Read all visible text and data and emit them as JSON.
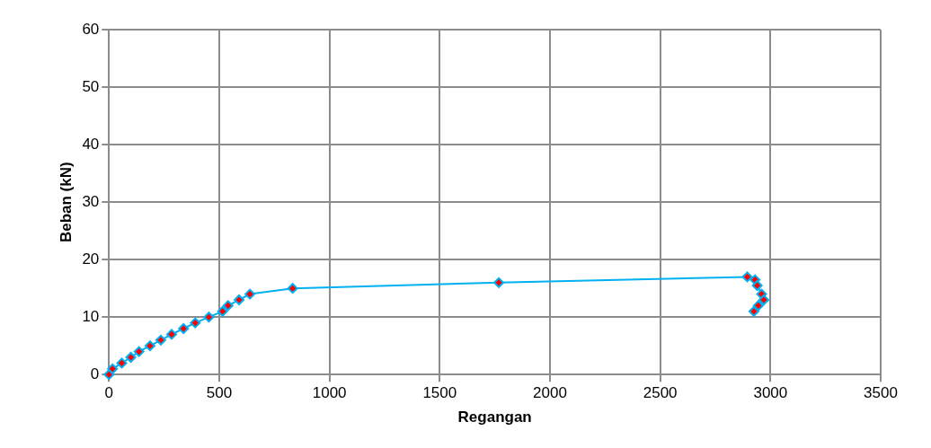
{
  "chart_data": {
    "type": "line",
    "xlabel": "Regangan",
    "ylabel": "Beban (kN)",
    "x": [
      0,
      16,
      58,
      99,
      136,
      186,
      235,
      284,
      338,
      391,
      453,
      515,
      540,
      590,
      639,
      833,
      1768,
      2895,
      2930,
      2940,
      2960,
      2970,
      2945,
      2925
    ],
    "series": [
      {
        "color": "#00b0f0",
        "colors": [
          "#ff0000",
          "#ff0000",
          "#ff0000",
          "#ff0000",
          "#ff0000",
          "#ff0000",
          "#ff0000",
          "#ff0000",
          "#ff0000",
          "#ff0000",
          "#ff0000",
          "#ff0000",
          "#ff0000",
          "#ff0000",
          "#ff0000",
          "#ff0000",
          "#ff0000",
          "#ff0000",
          "#ff0000",
          "#ff0000",
          "#ff0000",
          "#ff0000",
          "#ff0000",
          "#ff0000"
        ],
        "values": [
          0,
          1,
          2,
          3,
          4,
          5,
          6,
          7,
          8,
          9,
          10,
          11,
          12,
          13,
          14,
          15,
          16,
          17,
          16.5,
          15.5,
          14,
          13,
          12,
          11
        ]
      }
    ],
    "xlim": [
      0,
      3500
    ],
    "xticks": [
      0,
      500,
      1000,
      1500,
      2000,
      2500,
      3000,
      3500
    ],
    "ylim": [
      0,
      60
    ],
    "yticks": [
      0,
      10,
      20,
      30,
      40,
      50,
      60
    ],
    "grid": true,
    "legend": false,
    "marker": "diamond",
    "line_style": "solid"
  }
}
